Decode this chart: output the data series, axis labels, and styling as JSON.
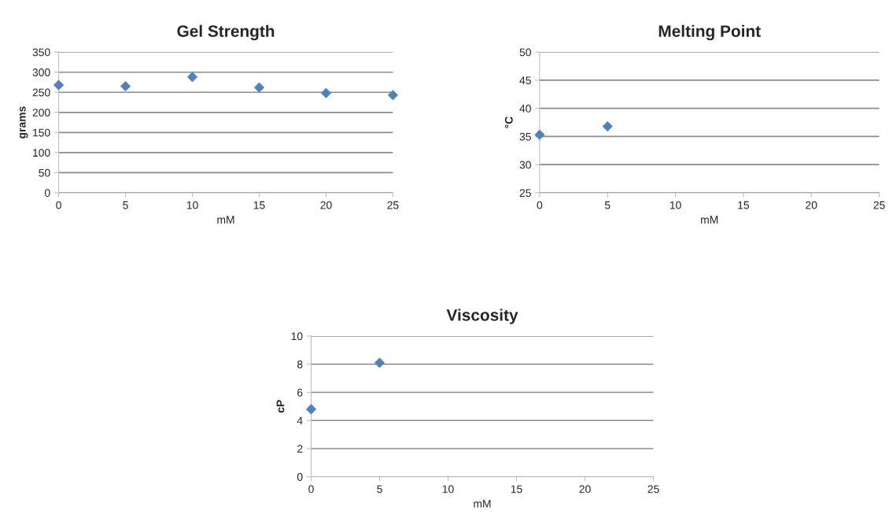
{
  "chart_data": [
    {
      "type": "scatter",
      "title": "Gel Strength",
      "xlabel": "mM",
      "ylabel": "grams",
      "marker": "diamond",
      "grid": "y",
      "legend": false,
      "series": [
        {
          "color": "#4f81bd",
          "x": [
            0,
            5,
            10,
            15,
            20,
            25
          ],
          "values": [
            268,
            265,
            288,
            262,
            248,
            243
          ]
        }
      ],
      "xlim": [
        0,
        25
      ],
      "xticks": [
        0,
        5,
        10,
        15,
        20,
        25
      ],
      "ylim": [
        0,
        350
      ],
      "yticks": [
        0,
        50,
        100,
        150,
        200,
        250,
        300,
        350
      ]
    },
    {
      "type": "scatter",
      "title": "Melting Point",
      "xlabel": "mM",
      "ylabel": "°C",
      "marker": "diamond",
      "grid": "y",
      "legend": false,
      "series": [
        {
          "color": "#4f81bd",
          "x": [
            0,
            5
          ],
          "values": [
            35.3,
            36.8
          ]
        }
      ],
      "xlim": [
        0,
        25
      ],
      "xticks": [
        0,
        5,
        10,
        15,
        20,
        25
      ],
      "ylim": [
        25,
        50
      ],
      "yticks": [
        25,
        30,
        35,
        40,
        45,
        50
      ]
    },
    {
      "type": "scatter",
      "title": "Viscosity",
      "xlabel": "mM",
      "ylabel": "cP",
      "marker": "diamond",
      "grid": "y",
      "legend": false,
      "series": [
        {
          "color": "#4f81bd",
          "x": [
            0,
            5
          ],
          "values": [
            4.8,
            8.1
          ]
        }
      ],
      "xlim": [
        0,
        25
      ],
      "xticks": [
        0,
        5,
        10,
        15,
        20,
        25
      ],
      "ylim": [
        0,
        10
      ],
      "yticks": [
        0,
        2,
        4,
        6,
        8,
        10
      ]
    }
  ]
}
